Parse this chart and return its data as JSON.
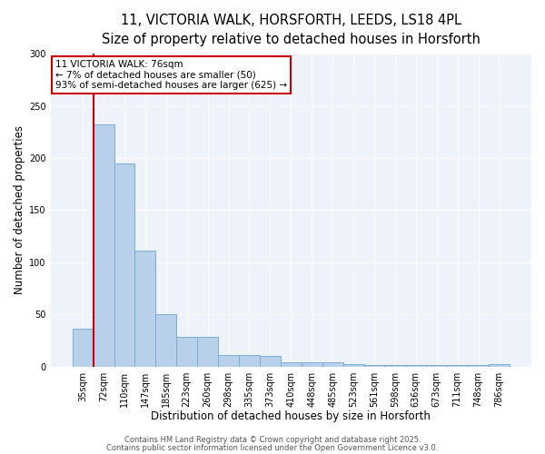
{
  "title1": "11, VICTORIA WALK, HORSFORTH, LEEDS, LS18 4PL",
  "title2": "Size of property relative to detached houses in Horsforth",
  "xlabel": "Distribution of detached houses by size in Horsforth",
  "ylabel": "Number of detached properties",
  "categories": [
    "35sqm",
    "72sqm",
    "110sqm",
    "147sqm",
    "185sqm",
    "223sqm",
    "260sqm",
    "298sqm",
    "335sqm",
    "373sqm",
    "410sqm",
    "448sqm",
    "485sqm",
    "523sqm",
    "561sqm",
    "598sqm",
    "636sqm",
    "673sqm",
    "711sqm",
    "748sqm",
    "786sqm"
  ],
  "values": [
    36,
    232,
    195,
    111,
    50,
    28,
    28,
    11,
    11,
    10,
    4,
    4,
    4,
    2,
    1,
    1,
    1,
    1,
    1,
    1,
    2
  ],
  "bar_color": "#b8d0ea",
  "bar_edge_color": "#7aadd4",
  "vline_x": 0.5,
  "vline_color": "#cc0000",
  "annotation_text": "11 VICTORIA WALK: 76sqm\n← 7% of detached houses are smaller (50)\n93% of semi-detached houses are larger (625) →",
  "annotation_box_color": "#ffffff",
  "annotation_box_edge": "#cc0000",
  "ylim": [
    0,
    300
  ],
  "yticks": [
    0,
    50,
    100,
    150,
    200,
    250,
    300
  ],
  "bg_color": "#eef2fb",
  "footer1": "Contains HM Land Registry data © Crown copyright and database right 2025.",
  "footer2": "Contains public sector information licensed under the Open Government Licence v3.0.",
  "title1_fontsize": 10.5,
  "title2_fontsize": 9.5,
  "axis_label_fontsize": 8.5,
  "tick_fontsize": 7,
  "annotation_fontsize": 7.5,
  "footer_fontsize": 6
}
